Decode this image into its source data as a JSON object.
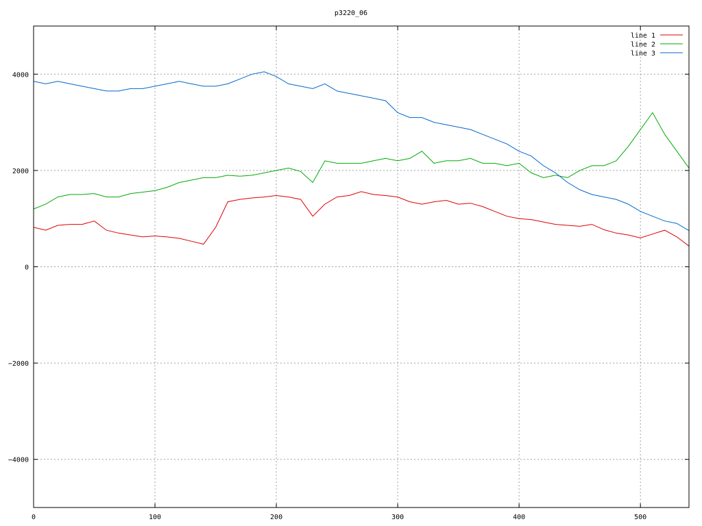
{
  "chart_data": {
    "type": "line",
    "title": "p3220_06",
    "xlabel": "",
    "ylabel": "",
    "xlim": [
      0,
      540
    ],
    "ylim": [
      -5000,
      5000
    ],
    "x_ticks": [
      "0",
      "100",
      "200",
      "300",
      "400",
      "500"
    ],
    "y_ticks": [
      "−4000",
      "−2000",
      "0",
      "2000",
      "4000"
    ],
    "grid": true,
    "legend_position": "top-right",
    "x": [
      0,
      10,
      20,
      30,
      40,
      50,
      60,
      70,
      80,
      90,
      100,
      110,
      120,
      130,
      140,
      150,
      160,
      170,
      180,
      190,
      200,
      210,
      220,
      230,
      240,
      250,
      260,
      270,
      280,
      290,
      300,
      310,
      320,
      330,
      340,
      350,
      360,
      370,
      380,
      390,
      400,
      410,
      420,
      430,
      440,
      450,
      460,
      470,
      480,
      490,
      500,
      510,
      520,
      530,
      540
    ],
    "series": [
      {
        "name": "line 1",
        "color": "#dd0000",
        "values": [
          820,
          760,
          860,
          880,
          880,
          950,
          760,
          700,
          660,
          620,
          640,
          620,
          590,
          530,
          470,
          820,
          1350,
          1400,
          1430,
          1450,
          1480,
          1450,
          1400,
          1050,
          1300,
          1450,
          1480,
          1560,
          1500,
          1480,
          1450,
          1350,
          1300,
          1350,
          1380,
          1300,
          1320,
          1250,
          1150,
          1050,
          1000,
          980,
          930,
          880,
          860,
          840,
          880,
          770,
          700,
          660,
          600,
          680,
          760,
          620,
          430
        ]
      },
      {
        "name": "line 2",
        "color": "#00aa00",
        "values": [
          1200,
          1300,
          1450,
          1500,
          1500,
          1520,
          1450,
          1450,
          1520,
          1550,
          1580,
          1650,
          1750,
          1800,
          1850,
          1850,
          1900,
          1880,
          1900,
          1950,
          2000,
          2050,
          1980,
          1750,
          2200,
          2150,
          2150,
          2150,
          2200,
          2250,
          2200,
          2250,
          2400,
          2150,
          2200,
          2200,
          2250,
          2150,
          2150,
          2100,
          2150,
          1950,
          1850,
          1900,
          1850,
          2000,
          2100,
          2100,
          2200,
          2500,
          2850,
          3200,
          2750,
          2400,
          2050
        ]
      },
      {
        "name": "line 3",
        "color": "#0066cc",
        "values": [
          3850,
          3800,
          3850,
          3800,
          3750,
          3700,
          3650,
          3650,
          3700,
          3700,
          3750,
          3800,
          3850,
          3800,
          3750,
          3750,
          3800,
          3900,
          4000,
          4050,
          3950,
          3800,
          3750,
          3700,
          3800,
          3650,
          3600,
          3550,
          3500,
          3450,
          3200,
          3100,
          3100,
          3000,
          2950,
          2900,
          2850,
          2750,
          2650,
          2550,
          2400,
          2300,
          2100,
          1950,
          1750,
          1600,
          1500,
          1450,
          1400,
          1300,
          1150,
          1050,
          950,
          900,
          750
        ]
      }
    ]
  }
}
